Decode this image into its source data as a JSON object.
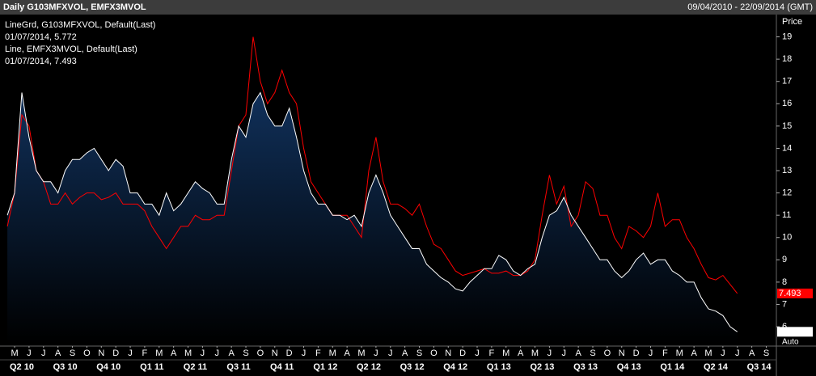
{
  "chart_data": {
    "type": "line",
    "title": "Daily G103MFXVOL, EMFX3MVOL",
    "date_range": "09/04/2010 - 22/09/2014 (GMT)",
    "y_label": "Price",
    "y_mode": "Auto",
    "x": [
      0.5,
      1,
      1.5,
      2,
      2.5,
      3,
      3.5,
      4,
      4.5,
      5,
      5.5,
      6,
      6.5,
      7,
      7.5,
      8,
      8.5,
      9,
      9.5,
      10,
      10.5,
      11,
      11.5,
      12,
      12.5,
      13,
      13.5,
      14,
      14.5,
      15,
      15.5,
      16,
      16.5,
      17,
      17.5,
      18,
      18.5,
      19,
      19.5,
      20,
      20.5,
      21,
      21.5,
      22,
      22.5,
      23,
      23.5,
      24,
      24.5,
      25,
      25.5,
      26,
      26.5,
      27,
      27.5,
      28,
      28.5,
      29,
      29.5,
      30,
      30.5,
      31,
      31.5,
      32,
      32.5,
      33,
      33.5,
      34,
      34.5,
      35,
      35.5,
      36,
      36.5,
      37,
      37.5,
      38,
      38.5,
      39,
      39.5,
      40,
      40.5,
      41,
      41.5,
      42,
      42.5,
      43,
      43.5,
      44,
      44.5,
      45,
      45.5,
      46,
      46.5,
      47,
      47.5,
      48,
      48.5,
      49,
      49.5,
      50,
      50.5,
      51
    ],
    "xlim": [
      0.27,
      53.7
    ],
    "xticks": [
      {
        "value": 1,
        "label": "M"
      },
      {
        "value": 2,
        "label": "J"
      },
      {
        "value": 3,
        "label": "J"
      },
      {
        "value": 4,
        "label": "A"
      },
      {
        "value": 5,
        "label": "S"
      },
      {
        "value": 6,
        "label": "O"
      },
      {
        "value": 7,
        "label": "N"
      },
      {
        "value": 8,
        "label": "D"
      },
      {
        "value": 9,
        "label": "J"
      },
      {
        "value": 10,
        "label": "F"
      },
      {
        "value": 11,
        "label": "M"
      },
      {
        "value": 12,
        "label": "A"
      },
      {
        "value": 13,
        "label": "M"
      },
      {
        "value": 14,
        "label": "J"
      },
      {
        "value": 15,
        "label": "J"
      },
      {
        "value": 16,
        "label": "A"
      },
      {
        "value": 17,
        "label": "S"
      },
      {
        "value": 18,
        "label": "O"
      },
      {
        "value": 19,
        "label": "N"
      },
      {
        "value": 20,
        "label": "D"
      },
      {
        "value": 21,
        "label": "J"
      },
      {
        "value": 22,
        "label": "F"
      },
      {
        "value": 23,
        "label": "M"
      },
      {
        "value": 24,
        "label": "A"
      },
      {
        "value": 25,
        "label": "M"
      },
      {
        "value": 26,
        "label": "J"
      },
      {
        "value": 27,
        "label": "J"
      },
      {
        "value": 28,
        "label": "A"
      },
      {
        "value": 29,
        "label": "S"
      },
      {
        "value": 30,
        "label": "O"
      },
      {
        "value": 31,
        "label": "N"
      },
      {
        "value": 32,
        "label": "D"
      },
      {
        "value": 33,
        "label": "J"
      },
      {
        "value": 34,
        "label": "F"
      },
      {
        "value": 35,
        "label": "M"
      },
      {
        "value": 36,
        "label": "A"
      },
      {
        "value": 37,
        "label": "M"
      },
      {
        "value": 38,
        "label": "J"
      },
      {
        "value": 39,
        "label": "J"
      },
      {
        "value": 40,
        "label": "A"
      },
      {
        "value": 41,
        "label": "S"
      },
      {
        "value": 42,
        "label": "O"
      },
      {
        "value": 43,
        "label": "N"
      },
      {
        "value": 44,
        "label": "D"
      },
      {
        "value": 45,
        "label": "J"
      },
      {
        "value": 46,
        "label": "F"
      },
      {
        "value": 47,
        "label": "M"
      },
      {
        "value": 48,
        "label": "A"
      },
      {
        "value": 49,
        "label": "M"
      },
      {
        "value": 50,
        "label": "J"
      },
      {
        "value": 51,
        "label": "J"
      },
      {
        "value": 52,
        "label": "A"
      },
      {
        "value": 53,
        "label": "S"
      }
    ],
    "quarters": [
      {
        "value": 1.5,
        "label": "Q2 10"
      },
      {
        "value": 4.5,
        "label": "Q3 10"
      },
      {
        "value": 7.5,
        "label": "Q4 10"
      },
      {
        "value": 10.5,
        "label": "Q1 11"
      },
      {
        "value": 13.5,
        "label": "Q2 11"
      },
      {
        "value": 16.5,
        "label": "Q3 11"
      },
      {
        "value": 19.5,
        "label": "Q4 11"
      },
      {
        "value": 22.5,
        "label": "Q1 12"
      },
      {
        "value": 25.5,
        "label": "Q2 12"
      },
      {
        "value": 28.5,
        "label": "Q3 12"
      },
      {
        "value": 31.5,
        "label": "Q4 12"
      },
      {
        "value": 34.5,
        "label": "Q1 13"
      },
      {
        "value": 37.5,
        "label": "Q2 13"
      },
      {
        "value": 40.5,
        "label": "Q3 13"
      },
      {
        "value": 43.5,
        "label": "Q4 13"
      },
      {
        "value": 46.5,
        "label": "Q1 14"
      },
      {
        "value": 49.5,
        "label": "Q2 14"
      },
      {
        "value": 52.5,
        "label": "Q3 14"
      }
    ],
    "ylim": [
      5.24,
      20
    ],
    "yticks": [
      6,
      7,
      8,
      9,
      10,
      11,
      12,
      13,
      14,
      15,
      16,
      17,
      18,
      19
    ],
    "series": [
      {
        "name": "G103MFXVOL",
        "color": "#ffffff",
        "fill": true,
        "legend_label": "LineGrd, G103MFXVOL, Default(Last)",
        "legend_value": "01/07/2014, 5.772",
        "values": [
          11,
          12,
          16.5,
          14.5,
          13,
          12.5,
          12.5,
          12,
          13,
          13.5,
          13.5,
          13.8,
          14,
          13.5,
          13,
          13.5,
          13.2,
          12,
          12,
          11.5,
          11.5,
          11,
          12,
          11.2,
          11.5,
          12,
          12.5,
          12.2,
          12,
          11.5,
          11.5,
          13.5,
          15,
          14.5,
          16,
          16.5,
          15.5,
          15,
          15,
          15.8,
          14.5,
          13,
          12,
          11.5,
          11.5,
          11,
          11,
          10.8,
          11,
          10.5,
          12,
          12.8,
          12,
          11,
          10.5,
          10,
          9.5,
          9.5,
          8.8,
          8.5,
          8.2,
          8,
          7.7,
          7.6,
          8,
          8.3,
          8.6,
          8.6,
          9.2,
          9,
          8.5,
          8.3,
          8.6,
          8.8,
          10,
          11,
          11.2,
          11.8,
          11,
          10.5,
          10,
          9.5,
          9,
          9,
          8.5,
          8.2,
          8.5,
          9,
          9.3,
          8.8,
          9,
          9,
          8.5,
          8.3,
          8,
          8,
          7.3,
          6.8,
          6.7,
          6.5,
          6,
          5.772
        ]
      },
      {
        "name": "EMFX3MVOL",
        "color": "#ff0000",
        "fill": false,
        "legend_label": "Line, EMFX3MVOL, Default(Last)",
        "legend_value": "01/07/2014, 7.493",
        "values": [
          10.5,
          12,
          15.5,
          15,
          13,
          12.5,
          11.5,
          11.5,
          12,
          11.5,
          11.8,
          12,
          12,
          11.7,
          11.8,
          12,
          11.5,
          11.5,
          11.5,
          11.2,
          10.5,
          10,
          9.5,
          10,
          10.5,
          10.5,
          11,
          10.8,
          10.8,
          11,
          11,
          13,
          15,
          15.5,
          19,
          17,
          16,
          16.5,
          17.5,
          16.5,
          16,
          14,
          12.5,
          12,
          11.5,
          11,
          11,
          11,
          10.5,
          10,
          13,
          14.5,
          12.5,
          11.5,
          11.5,
          11.3,
          11,
          11.5,
          10.5,
          9.7,
          9.5,
          9,
          8.5,
          8.3,
          8.4,
          8.5,
          8.6,
          8.4,
          8.4,
          8.5,
          8.3,
          8.3,
          8.5,
          9,
          11,
          12.8,
          11.5,
          12.3,
          10.5,
          11,
          12.5,
          12.2,
          11,
          11,
          10,
          9.5,
          10.5,
          10.3,
          10,
          10.5,
          12,
          10.5,
          10.8,
          10.8,
          10,
          9.5,
          8.8,
          8.2,
          8.1,
          8.3,
          7.9,
          7.493
        ]
      }
    ]
  }
}
